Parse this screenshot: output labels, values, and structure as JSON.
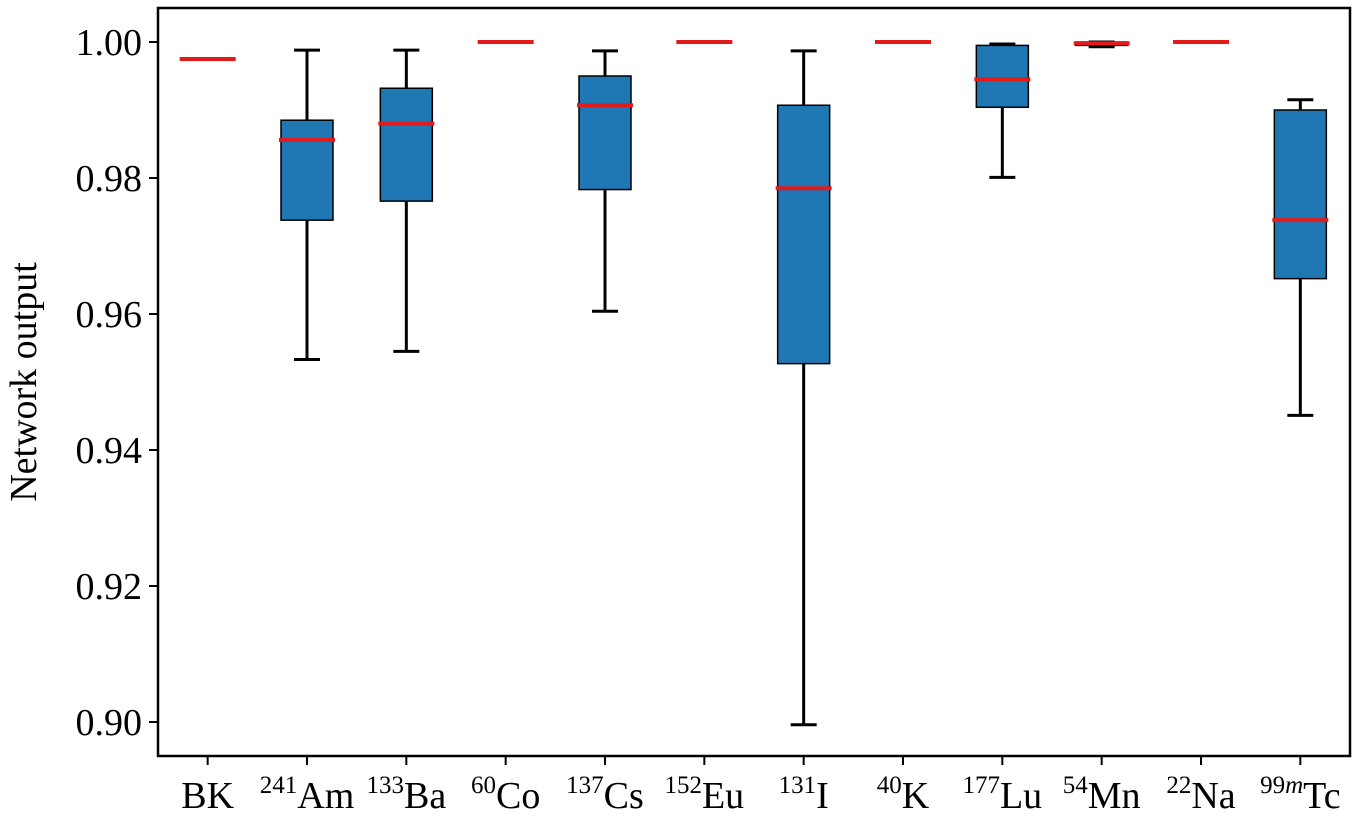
{
  "chart_data": {
    "type": "box",
    "ylabel": "Network output",
    "xlabel": "",
    "ylim": [
      0.895,
      1.005
    ],
    "yticks": [
      "0.90",
      "0.92",
      "0.94",
      "0.96",
      "0.98",
      "1.00"
    ],
    "ytick_values": [
      0.9,
      0.92,
      0.94,
      0.96,
      0.98,
      1.0
    ],
    "grid": false,
    "colors": {
      "box": "#1f77b4",
      "median": "#e31a1c",
      "whisker": "#000000"
    },
    "categories": [
      {
        "sup": "",
        "base": "BK"
      },
      {
        "sup": "241",
        "base": "Am"
      },
      {
        "sup": "133",
        "base": "Ba"
      },
      {
        "sup": "60",
        "base": "Co"
      },
      {
        "sup": "137",
        "base": "Cs"
      },
      {
        "sup": "152",
        "base": "Eu"
      },
      {
        "sup": "131",
        "base": "I"
      },
      {
        "sup": "40",
        "base": "K"
      },
      {
        "sup": "177",
        "base": "Lu"
      },
      {
        "sup": "54",
        "base": "Mn"
      },
      {
        "sup": "22",
        "base": "Na"
      },
      {
        "sup": "99m",
        "base": "Tc"
      }
    ],
    "boxes": [
      {
        "whislo": 0.9975,
        "q1": 0.9975,
        "med": 0.9975,
        "q3": 0.9975,
        "whishi": 0.9975
      },
      {
        "whislo": 0.9533,
        "q1": 0.9738,
        "med": 0.9856,
        "q3": 0.9885,
        "whishi": 0.9988
      },
      {
        "whislo": 0.9545,
        "q1": 0.9766,
        "med": 0.988,
        "q3": 0.9932,
        "whishi": 0.9988
      },
      {
        "whislo": 1.0,
        "q1": 1.0,
        "med": 1.0,
        "q3": 1.0,
        "whishi": 1.0
      },
      {
        "whislo": 0.9604,
        "q1": 0.9783,
        "med": 0.9907,
        "q3": 0.995,
        "whishi": 0.9987
      },
      {
        "whislo": 1.0,
        "q1": 1.0,
        "med": 1.0,
        "q3": 1.0,
        "whishi": 1.0
      },
      {
        "whislo": 0.8996,
        "q1": 0.9527,
        "med": 0.9785,
        "q3": 0.9907,
        "whishi": 0.9987
      },
      {
        "whislo": 1.0,
        "q1": 1.0,
        "med": 1.0,
        "q3": 1.0,
        "whishi": 1.0
      },
      {
        "whislo": 0.9801,
        "q1": 0.9904,
        "med": 0.9945,
        "q3": 0.9995,
        "whishi": 0.9997
      },
      {
        "whislo": 0.9993,
        "q1": 0.9995,
        "med": 0.9998,
        "q3": 1.0,
        "whishi": 1.0
      },
      {
        "whislo": 1.0,
        "q1": 1.0,
        "med": 1.0,
        "q3": 1.0,
        "whishi": 1.0
      },
      {
        "whislo": 0.9451,
        "q1": 0.9652,
        "med": 0.9738,
        "q3": 0.99,
        "whishi": 0.9915
      }
    ]
  }
}
